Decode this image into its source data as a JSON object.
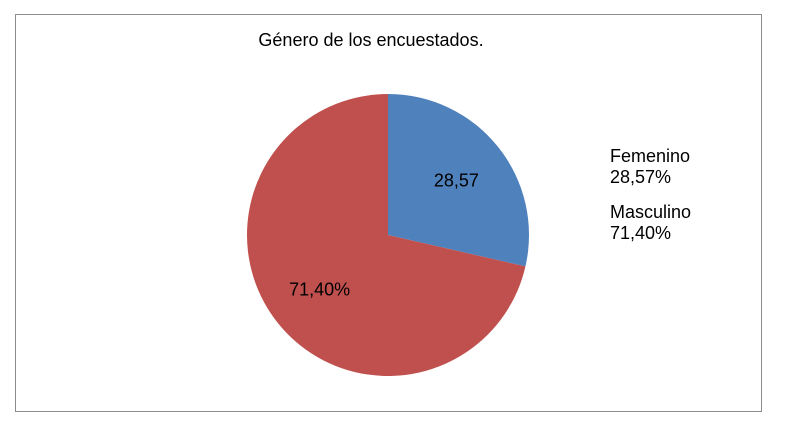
{
  "chart_data": {
    "type": "pie",
    "title": "Género de los encuestados.",
    "categories": [
      "Femenino",
      "Masculino"
    ],
    "values": [
      28.57,
      71.4
    ],
    "data_labels": [
      "28,57",
      "71,40%"
    ],
    "legend_values": [
      "28,57%",
      "71,40%"
    ],
    "colors": [
      "#4f81bd",
      "#c0504d"
    ],
    "legend_position": "right"
  }
}
